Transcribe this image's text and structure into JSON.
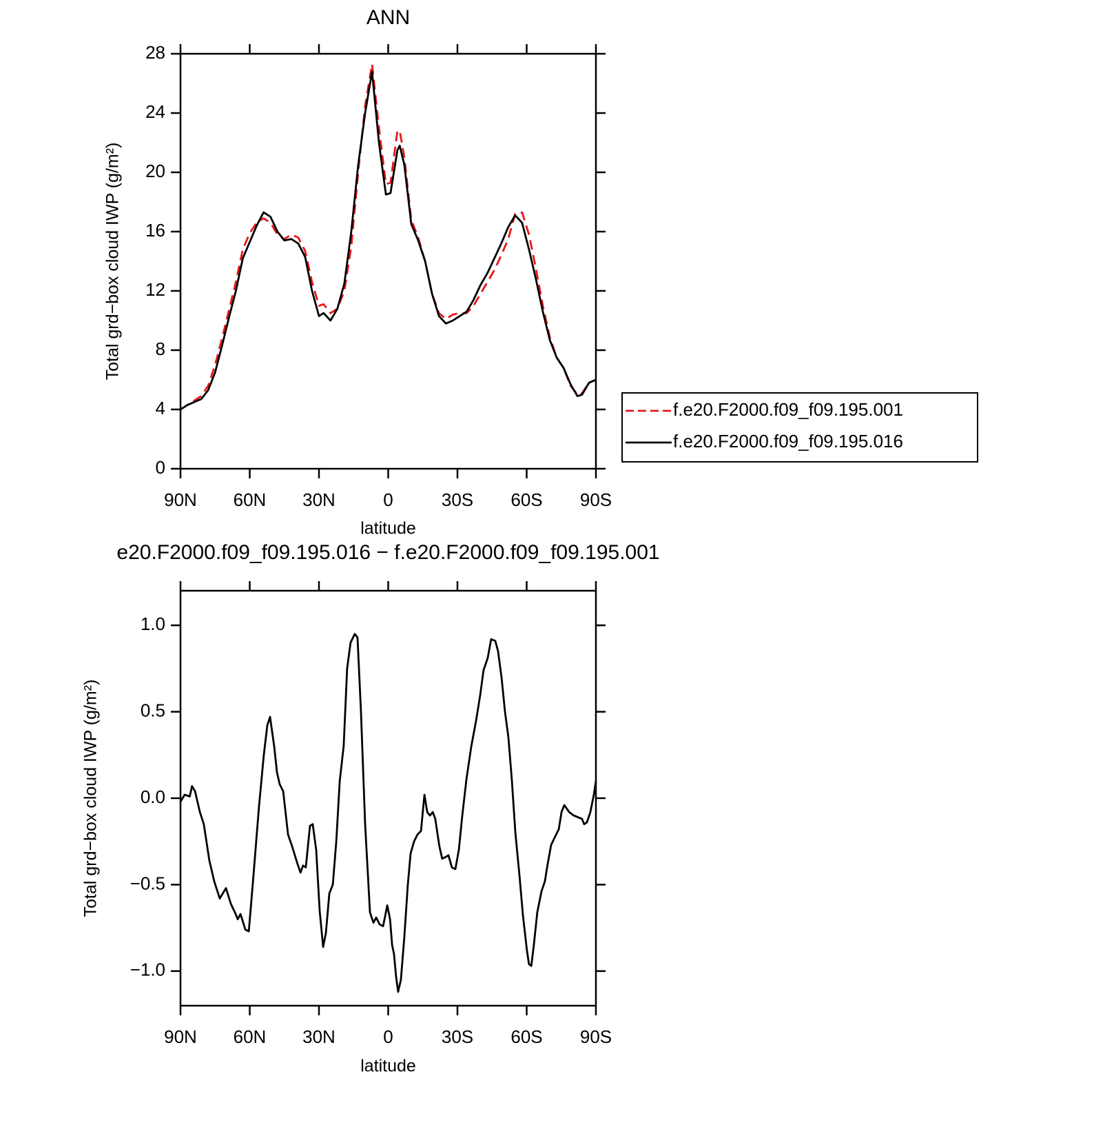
{
  "chart_data": [
    {
      "type": "line",
      "title": "ANN",
      "x_label": "latitude",
      "y_label": "Total grd−box cloud IWP (g/m²)",
      "x": [
        90,
        87,
        84,
        81,
        78,
        75,
        72,
        69,
        66,
        63,
        60,
        57,
        54,
        51,
        48,
        45,
        42,
        39,
        36,
        33,
        30,
        28,
        25,
        22,
        19,
        16,
        13,
        10,
        7,
        4,
        1,
        -1,
        -4,
        -5,
        -7,
        -10,
        -13,
        -16,
        -19,
        -22,
        -25,
        -28,
        -31,
        -34,
        -37,
        -40,
        -43,
        -46,
        -49,
        -52,
        -55,
        -58,
        -61,
        -64,
        -67,
        -70,
        -73,
        -76,
        -79,
        -82,
        -84,
        -87,
        -90
      ],
      "series": [
        {
          "name": "f.e20.F2000.f09_f09.195.001",
          "color": "#e8141a",
          "linestyle": "dashed",
          "values": [
            4.0,
            4.3,
            4.6,
            4.9,
            5.6,
            7.0,
            8.8,
            10.7,
            12.6,
            14.8,
            15.9,
            16.6,
            16.9,
            16.6,
            15.8,
            15.5,
            15.8,
            15.6,
            14.7,
            12.6,
            11.0,
            11.1,
            10.5,
            10.8,
            12.0,
            15.0,
            20.0,
            24.5,
            27.3,
            23.0,
            19.2,
            19.3,
            22.8,
            22.8,
            21.0,
            16.8,
            15.6,
            14.0,
            11.8,
            10.5,
            10.1,
            10.4,
            10.5,
            10.5,
            11.0,
            11.8,
            12.6,
            13.4,
            14.4,
            15.5,
            17.2,
            17.3,
            15.8,
            13.5,
            11.0,
            8.9,
            7.5,
            6.8,
            5.6,
            5.0,
            5.1,
            5.8,
            6.0
          ]
        },
        {
          "name": "f.e20.F2000.f09_f09.195.016",
          "color": "#000000",
          "linestyle": "solid",
          "values": [
            4.0,
            4.3,
            4.5,
            4.7,
            5.3,
            6.5,
            8.3,
            10.2,
            12.0,
            14.2,
            15.3,
            16.4,
            17.3,
            17.0,
            16.0,
            15.4,
            15.5,
            15.2,
            14.3,
            12.0,
            10.3,
            10.5,
            10.0,
            10.8,
            12.5,
            16.0,
            20.5,
            24.0,
            26.8,
            22.0,
            18.5,
            18.6,
            21.5,
            21.8,
            20.5,
            16.5,
            15.4,
            14.0,
            11.8,
            10.3,
            9.8,
            10.0,
            10.3,
            10.6,
            11.4,
            12.4,
            13.2,
            14.2,
            15.2,
            16.3,
            17.1,
            16.6,
            14.8,
            12.8,
            10.6,
            8.7,
            7.5,
            6.8,
            5.7,
            4.9,
            5.0,
            5.8,
            6.0
          ]
        }
      ],
      "xlim": [
        90,
        -90
      ],
      "xticks": [
        {
          "value": 90,
          "label": "90N"
        },
        {
          "value": 60,
          "label": "60N"
        },
        {
          "value": 30,
          "label": "30N"
        },
        0,
        {
          "value": -30,
          "label": "30S"
        },
        {
          "value": -60,
          "label": "60S"
        },
        {
          "value": -90,
          "label": "90S"
        }
      ],
      "ylim": [
        0,
        28
      ],
      "yticks": [
        0,
        4,
        8,
        12,
        16,
        20,
        24,
        28
      ],
      "legend": "right"
    },
    {
      "type": "line",
      "title": "e20.F2000.f09_f09.195.016 − f.e20.F2000.f09_f09.195.001",
      "x_label": "latitude",
      "y_label": "Total grd−box cloud IWP (g/m²)",
      "x": [
        90,
        88.2,
        86,
        85,
        83.7,
        81.6,
        79.9,
        77.5,
        75.4,
        73,
        70.3,
        68.2,
        66.1,
        65.2,
        64,
        61.9,
        60.4,
        58.4,
        56,
        53.9,
        52.4,
        51.2,
        49.4,
        48.2,
        47,
        45.5,
        43.4,
        41.6,
        39.3,
        38,
        36.9,
        35.7,
        33.9,
        32.7,
        31.2,
        29.7,
        28.2,
        27,
        25.5,
        24,
        22.5,
        21,
        19.3,
        17.8,
        16.3,
        14.5,
        13.3,
        11.8,
        10,
        7.9,
        6.4,
        5.2,
        3.7,
        2.2,
        0.4,
        -0.8,
        -1.7,
        -2.5,
        -3.4,
        -4.3,
        -5.5,
        -7,
        -8.5,
        -9.7,
        -11.2,
        -12.7,
        -14.2,
        -15.7,
        -16.9,
        -18.1,
        -19.3,
        -20.4,
        -22.2,
        -23.4,
        -24.9,
        -26.1,
        -27.6,
        -29.1,
        -30.6,
        -32.1,
        -33.9,
        -36,
        -38.1,
        -39.9,
        -41.3,
        -43.1,
        -44.6,
        -46.4,
        -47.6,
        -49.1,
        -50.6,
        -52.1,
        -53.6,
        -55.1,
        -56.9,
        -58.4,
        -60.1,
        -61,
        -62,
        -63.1,
        -64.6,
        -66.4,
        -67.9,
        -69.1,
        -70.6,
        -72.4,
        -73.9,
        -75.1,
        -76.3,
        -78.4,
        -80.4,
        -82.2,
        -84,
        -84.9,
        -86.1,
        -87.6,
        -89.1,
        -90
      ],
      "values": [
        -0.02,
        0.02,
        0.01,
        0.07,
        0.04,
        -0.08,
        -0.15,
        -0.36,
        -0.48,
        -0.58,
        -0.52,
        -0.61,
        -0.67,
        -0.7,
        -0.67,
        -0.76,
        -0.77,
        -0.45,
        -0.05,
        0.25,
        0.42,
        0.47,
        0.3,
        0.15,
        0.08,
        0.04,
        -0.21,
        -0.28,
        -0.38,
        -0.43,
        -0.39,
        -0.4,
        -0.16,
        -0.15,
        -0.3,
        -0.65,
        -0.86,
        -0.78,
        -0.55,
        -0.5,
        -0.25,
        0.1,
        0.3,
        0.75,
        0.9,
        0.95,
        0.93,
        0.5,
        -0.15,
        -0.66,
        -0.72,
        -0.69,
        -0.73,
        -0.74,
        -0.62,
        -0.7,
        -0.85,
        -0.9,
        -1.03,
        -1.12,
        -1.05,
        -0.8,
        -0.5,
        -0.32,
        -0.25,
        -0.21,
        -0.19,
        0.02,
        -0.08,
        -0.1,
        -0.08,
        -0.12,
        -0.28,
        -0.35,
        -0.34,
        -0.33,
        -0.4,
        -0.41,
        -0.3,
        -0.1,
        0.11,
        0.3,
        0.45,
        0.6,
        0.74,
        0.81,
        0.92,
        0.91,
        0.85,
        0.7,
        0.5,
        0.35,
        0.1,
        -0.2,
        -0.45,
        -0.68,
        -0.88,
        -0.96,
        -0.97,
        -0.85,
        -0.66,
        -0.54,
        -0.48,
        -0.38,
        -0.27,
        -0.22,
        -0.18,
        -0.08,
        -0.04,
        -0.08,
        -0.1,
        -0.11,
        -0.12,
        -0.15,
        -0.14,
        -0.08,
        0.02,
        0.1
      ],
      "color": "#000000",
      "xlim": [
        90,
        -90
      ],
      "xticks": [
        {
          "value": 90,
          "label": "90N"
        },
        {
          "value": 60,
          "label": "60N"
        },
        {
          "value": 30,
          "label": "30N"
        },
        0,
        {
          "value": -30,
          "label": "30S"
        },
        {
          "value": -60,
          "label": "60S"
        },
        {
          "value": -90,
          "label": "90S"
        }
      ],
      "ylim": [
        -1.2,
        1.2
      ],
      "yticks": [
        {
          "value": -1,
          "label": "−1.0"
        },
        {
          "value": -0.5,
          "label": "−0.5"
        },
        {
          "value": 0,
          "label": "0.0"
        },
        {
          "value": 0.5,
          "label": "0.5"
        },
        {
          "value": 1,
          "label": "1.0"
        }
      ]
    }
  ]
}
